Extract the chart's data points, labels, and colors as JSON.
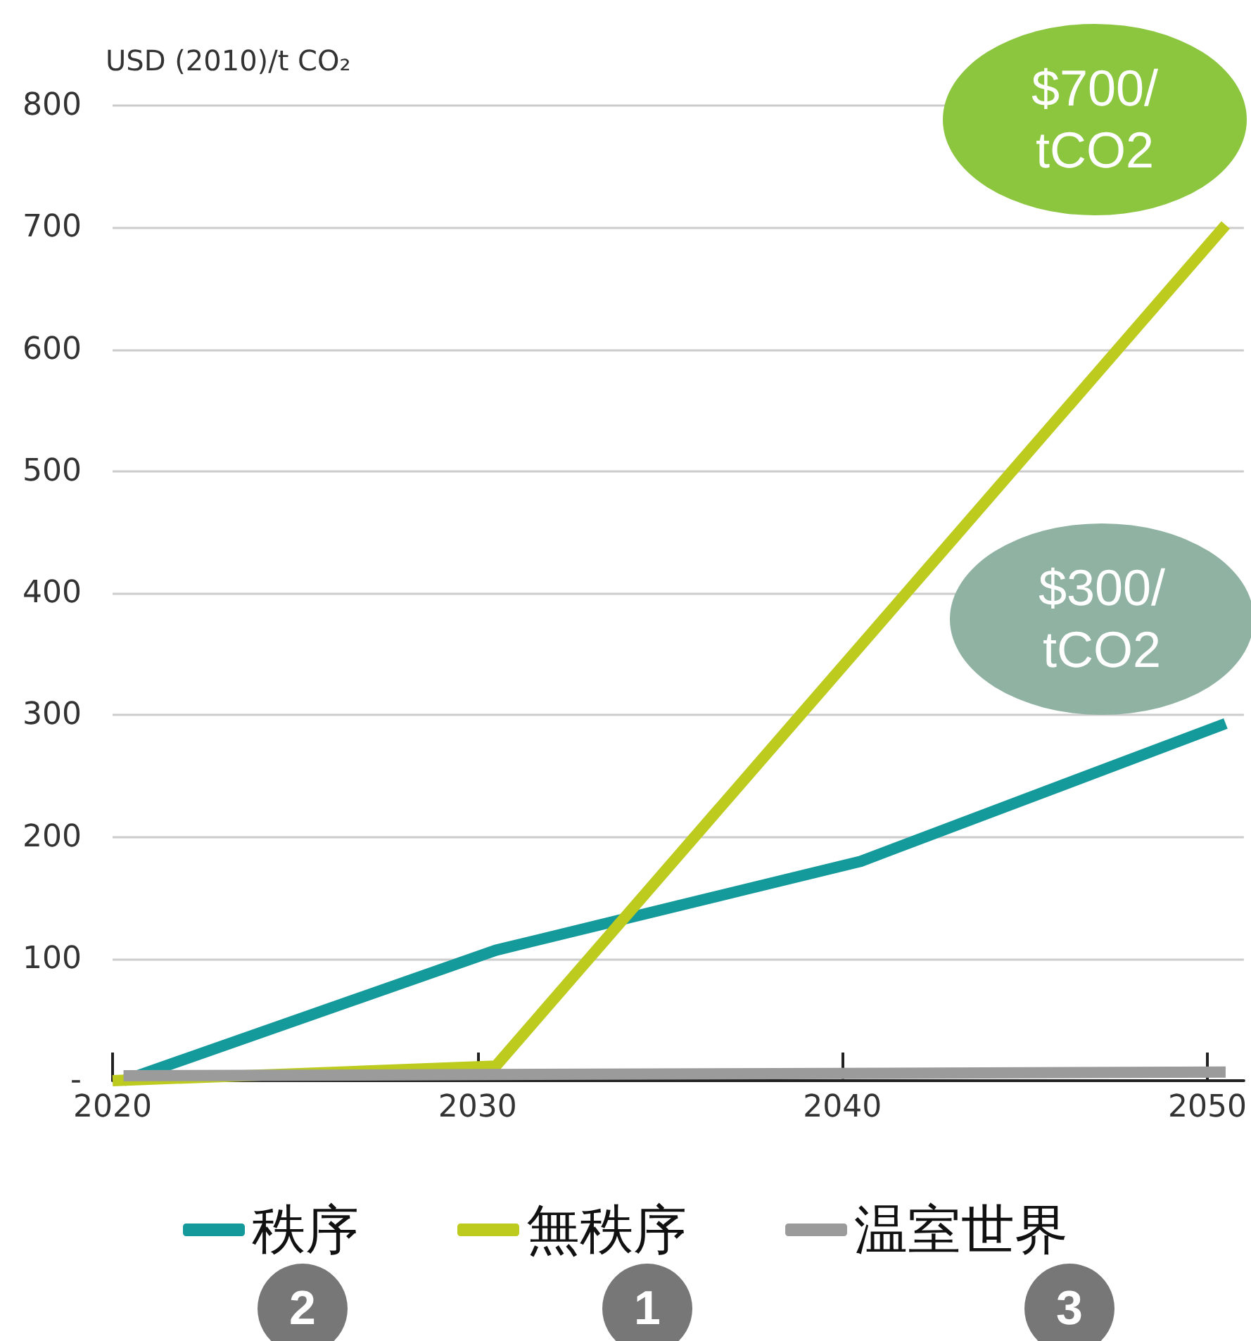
{
  "chart_data": {
    "type": "line",
    "ylabel": "USD (2010)/t CO₂",
    "xlim": [
      2020,
      2051
    ],
    "xticks": [
      2020,
      2030,
      2040,
      2050
    ],
    "ylim": [
      0,
      800
    ],
    "yticks": [
      {
        "value": 0,
        "label": "-"
      },
      100,
      200,
      300,
      400,
      500,
      600,
      700,
      800
    ],
    "grid": "y",
    "legend": "bottom",
    "line_style": "solid",
    "marker": "none",
    "series": [
      {
        "name": "秩序",
        "color": "#159a9c",
        "x": [
          2020.3,
          2030.5,
          2040.5,
          2050.5
        ],
        "values": [
          0,
          107,
          180,
          293
        ]
      },
      {
        "name": "無秩序",
        "color": "#bccb1e",
        "x": [
          2020,
          2030.5,
          2050.5
        ],
        "values": [
          0,
          12,
          702
        ]
      },
      {
        "name": "温室世界",
        "color": "#9b9b9b",
        "x": [
          2020.3,
          2050.5
        ],
        "values": [
          4,
          7
        ]
      }
    ],
    "annotations": [
      "$700/\ntCO2",
      "$300/\ntCO2",
      "2",
      "1",
      "3"
    ]
  }
}
